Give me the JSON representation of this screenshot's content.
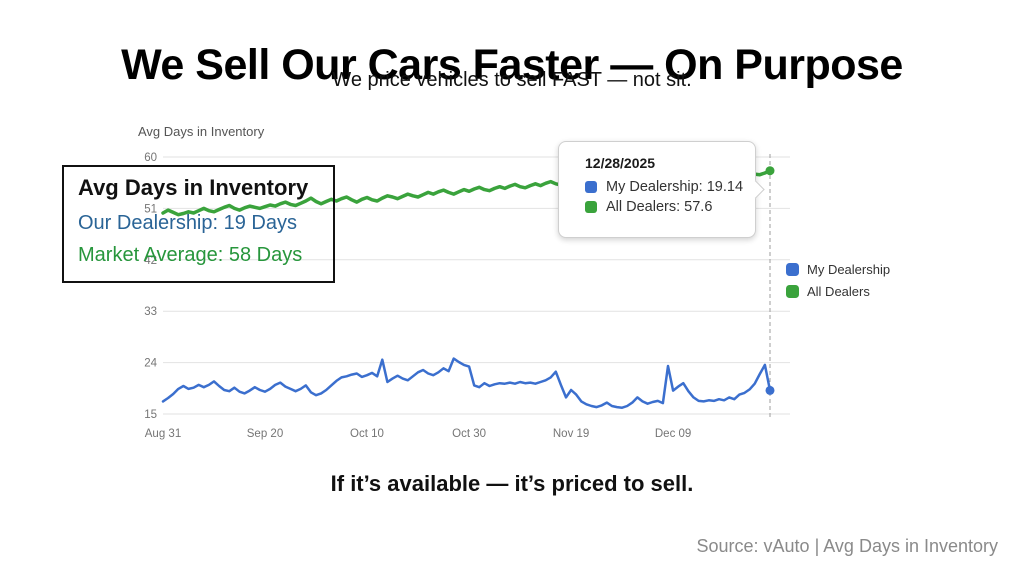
{
  "slide": {
    "title": "We Sell Our Cars Faster — On Purpose",
    "subtitle": "We price vehicles to sell FAST — not sit.",
    "tagline": "If it’s available — it’s priced to sell.",
    "source": "Source: vAuto | Avg Days in Inventory"
  },
  "callout": {
    "title": "Avg Days in Inventory",
    "dealership_line": "Our Dealership: 19 Days",
    "market_line": "Market Average: 58 Days"
  },
  "tooltip": {
    "date": "12/28/2025",
    "rows": [
      {
        "label": "My Dealership",
        "value": "19.14",
        "text": "My Dealership: 19.14",
        "color_key": "blue"
      },
      {
        "label": "All Dealers",
        "value": "57.6",
        "text": "All Dealers: 57.6",
        "color_key": "green"
      }
    ]
  },
  "legend": {
    "items": [
      {
        "label": "My Dealership",
        "color_key": "blue"
      },
      {
        "label": "All Dealers",
        "color_key": "green"
      }
    ]
  },
  "colors": {
    "blue": "#3b6fce",
    "green": "#3aa33c",
    "callout_blue": "#2a6496",
    "callout_green": "#27963c",
    "grid": "#e2e2e2",
    "crosshair": "#9e9e9e",
    "tick": "#757575"
  },
  "chart_data": {
    "type": "line",
    "title": "Avg Days in Inventory",
    "xlabel": "",
    "ylabel": "Avg Days in Inventory",
    "ylim": [
      15,
      60
    ],
    "grid": "horizontal",
    "legend_position": "right",
    "y_ticks": [
      60,
      51,
      42,
      33,
      24,
      15
    ],
    "x_ticks": [
      {
        "day": 0,
        "label": "Aug 31"
      },
      {
        "day": 20,
        "label": "Sep 20"
      },
      {
        "day": 40,
        "label": "Oct 10"
      },
      {
        "day": 60,
        "label": "Oct 30"
      },
      {
        "day": 80,
        "label": "Nov 19"
      },
      {
        "day": 100,
        "label": "Dec 09"
      }
    ],
    "crosshair_day": 119,
    "crosshair_date": "12/28/2025",
    "series": [
      {
        "name": "My Dealership",
        "color": "#3b6fce",
        "width": 2.5,
        "last_value": 19.14,
        "values": [
          17.2,
          17.8,
          18.5,
          19.4,
          19.9,
          19.4,
          19.6,
          20.1,
          19.7,
          20.1,
          20.7,
          19.9,
          19.2,
          19.0,
          19.6,
          18.9,
          18.6,
          19.1,
          19.7,
          19.2,
          18.9,
          19.4,
          20.1,
          20.5,
          19.8,
          19.4,
          19.0,
          19.4,
          20.0,
          18.8,
          18.3,
          18.6,
          19.2,
          20.0,
          20.8,
          21.4,
          21.6,
          21.9,
          22.1,
          21.5,
          21.8,
          22.2,
          21.6,
          24.5,
          20.6,
          21.2,
          21.7,
          21.2,
          20.9,
          21.6,
          22.3,
          22.7,
          22.1,
          21.8,
          22.3,
          23.0,
          22.5,
          24.7,
          24.1,
          23.6,
          23.3,
          20.0,
          19.7,
          20.4,
          19.9,
          20.2,
          20.4,
          20.3,
          20.5,
          20.3,
          20.6,
          20.4,
          20.5,
          20.3,
          20.6,
          20.9,
          21.4,
          22.4,
          20.1,
          17.9,
          19.2,
          18.4,
          17.2,
          16.7,
          16.4,
          16.2,
          16.5,
          17.0,
          16.4,
          16.2,
          16.1,
          16.4,
          17.0,
          17.9,
          17.2,
          16.8,
          17.1,
          17.3,
          16.9,
          23.4,
          19.1,
          19.8,
          20.4,
          19.0,
          17.9,
          17.3,
          17.2,
          17.4,
          17.3,
          17.6,
          17.4,
          17.9,
          17.6,
          18.4,
          18.7,
          19.3,
          20.3,
          22.0,
          23.6,
          19.14
        ]
      },
      {
        "name": "All Dealers",
        "color": "#3aa33c",
        "width": 3.5,
        "last_value": 57.6,
        "values": [
          50.2,
          50.7,
          50.3,
          49.9,
          50.1,
          50.4,
          50.2,
          50.6,
          51.0,
          50.6,
          50.4,
          50.8,
          51.2,
          51.5,
          51.0,
          50.7,
          51.1,
          51.4,
          51.2,
          51.0,
          51.3,
          51.6,
          51.4,
          51.8,
          52.1,
          51.7,
          51.5,
          51.9,
          52.3,
          52.8,
          52.2,
          51.8,
          52.2,
          52.6,
          52.3,
          52.7,
          53.0,
          52.5,
          52.1,
          52.6,
          52.9,
          52.5,
          52.3,
          52.8,
          53.2,
          53.0,
          52.7,
          53.1,
          53.5,
          53.2,
          53.0,
          53.4,
          53.8,
          53.5,
          53.9,
          54.2,
          53.8,
          53.5,
          53.9,
          54.3,
          54.0,
          54.4,
          54.7,
          54.3,
          54.1,
          54.5,
          54.8,
          54.5,
          54.9,
          55.2,
          54.8,
          54.6,
          55.0,
          55.3,
          55.0,
          55.4,
          55.7,
          55.3,
          55.1,
          55.5,
          55.8,
          55.5,
          55.9,
          56.1,
          55.8,
          55.6,
          56.0,
          56.2,
          55.9,
          56.3,
          56.0,
          56.4,
          56.1,
          56.5,
          56.2,
          56.6,
          56.3,
          56.7,
          56.4,
          56.8,
          56.5,
          56.9,
          56.6,
          57.0,
          56.7,
          56.4,
          56.8,
          57.1,
          56.8,
          56.5,
          56.9,
          56.6,
          57.0,
          56.7,
          57.1,
          56.8,
          57.0,
          56.9,
          57.2,
          57.6
        ]
      }
    ]
  }
}
